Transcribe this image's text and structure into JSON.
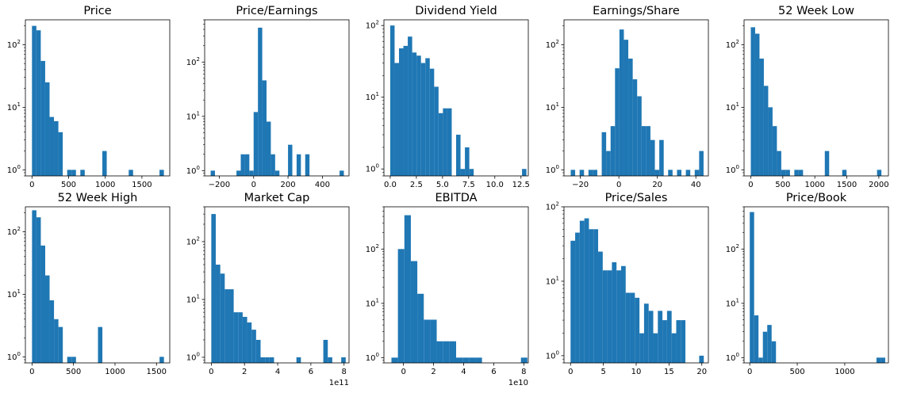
{
  "figure": {
    "bar_color": "#1f77b4",
    "background": "#ffffff"
  },
  "chart_data": [
    {
      "type": "bar",
      "title": "Price",
      "yscale": "log",
      "ylim": [
        0.8,
        250
      ],
      "xlim": [
        -90,
        1880
      ],
      "xticks": [
        0,
        500,
        1000,
        1500
      ],
      "xtick_labels": [
        "0",
        "500",
        "1000",
        "1500"
      ],
      "bins": [
        [
          0,
          60,
          200
        ],
        [
          60,
          120,
          170
        ],
        [
          120,
          180,
          55
        ],
        [
          180,
          240,
          25
        ],
        [
          240,
          300,
          7
        ],
        [
          300,
          360,
          6
        ],
        [
          360,
          420,
          4
        ],
        [
          480,
          540,
          1
        ],
        [
          540,
          600,
          1
        ],
        [
          660,
          720,
          1
        ],
        [
          960,
          1020,
          2
        ],
        [
          1320,
          1380,
          1
        ],
        [
          1740,
          1800,
          1
        ]
      ]
    },
    {
      "type": "bar",
      "title": "Price/Earnings",
      "yscale": "log",
      "ylim": [
        0.8,
        600
      ],
      "xlim": [
        -285,
        555
      ],
      "xticks": [
        -200,
        0,
        200,
        400
      ],
      "xtick_labels": [
        "−200",
        "0",
        "200",
        "400"
      ],
      "bins": [
        [
          -250,
          -225,
          1
        ],
        [
          -100,
          -75,
          1
        ],
        [
          -75,
          -50,
          2
        ],
        [
          -50,
          -25,
          2
        ],
        [
          -25,
          0,
          1
        ],
        [
          0,
          25,
          12
        ],
        [
          25,
          50,
          430
        ],
        [
          50,
          75,
          46
        ],
        [
          75,
          100,
          8
        ],
        [
          100,
          125,
          2
        ],
        [
          125,
          150,
          1
        ],
        [
          200,
          225,
          3
        ],
        [
          250,
          275,
          2
        ],
        [
          300,
          325,
          2
        ],
        [
          500,
          525,
          1
        ]
      ]
    },
    {
      "type": "bar",
      "title": "Dividend Yield",
      "yscale": "log",
      "ylim": [
        0.8,
        120
      ],
      "xlim": [
        -0.6,
        13.2
      ],
      "xticks": [
        0,
        2.5,
        5,
        7.5,
        10,
        12.5
      ],
      "xtick_labels": [
        "0.0",
        "2.5",
        "5.0",
        "7.5",
        "10.0",
        "12.5"
      ],
      "bins": [
        [
          0,
          0.42,
          100
        ],
        [
          0.42,
          0.84,
          30
        ],
        [
          0.84,
          1.26,
          48
        ],
        [
          1.26,
          1.68,
          52
        ],
        [
          1.68,
          2.1,
          70
        ],
        [
          2.1,
          2.52,
          42
        ],
        [
          2.52,
          2.94,
          38
        ],
        [
          2.94,
          3.36,
          30
        ],
        [
          3.36,
          3.78,
          35
        ],
        [
          3.78,
          4.2,
          25
        ],
        [
          4.2,
          4.62,
          14
        ],
        [
          4.62,
          5.04,
          6
        ],
        [
          5.04,
          5.46,
          7
        ],
        [
          5.46,
          5.88,
          7
        ],
        [
          6.3,
          6.72,
          3
        ],
        [
          6.72,
          7.14,
          1
        ],
        [
          7.14,
          7.56,
          2
        ],
        [
          7.56,
          7.98,
          1
        ],
        [
          12.6,
          13.02,
          1
        ]
      ]
    },
    {
      "type": "bar",
      "title": "Earnings/Share",
      "yscale": "log",
      "ylim": [
        0.8,
        250
      ],
      "xlim": [
        -28.5,
        46.5
      ],
      "xticks": [
        -20,
        0,
        20,
        40
      ],
      "xtick_labels": [
        "−20",
        "0",
        "20",
        "40"
      ],
      "bins": [
        [
          -25,
          -22.7,
          1
        ],
        [
          -20.4,
          -18.1,
          1
        ],
        [
          -15.8,
          -13.5,
          1
        ],
        [
          -13.5,
          -11.2,
          1
        ],
        [
          -8.9,
          -6.6,
          4
        ],
        [
          -6.6,
          -4.3,
          2
        ],
        [
          -4.3,
          -2,
          5
        ],
        [
          -2,
          0.3,
          42
        ],
        [
          0.3,
          2.6,
          175
        ],
        [
          2.6,
          4.9,
          120
        ],
        [
          4.9,
          7.2,
          60
        ],
        [
          7.2,
          9.5,
          28
        ],
        [
          9.5,
          11.8,
          15
        ],
        [
          11.8,
          14.1,
          5
        ],
        [
          14.1,
          16.4,
          5
        ],
        [
          16.4,
          18.7,
          3
        ],
        [
          18.7,
          21,
          1
        ],
        [
          21,
          23.3,
          3
        ],
        [
          25.6,
          27.9,
          1
        ],
        [
          30.2,
          32.5,
          1
        ],
        [
          34.8,
          37.1,
          1
        ],
        [
          39.4,
          41.7,
          1
        ],
        [
          41.7,
          44,
          2
        ]
      ]
    },
    {
      "type": "bar",
      "title": "52 Week Low",
      "yscale": "log",
      "ylim": [
        0.8,
        250
      ],
      "xlim": [
        -105,
        2150
      ],
      "xticks": [
        0,
        500,
        1000,
        1500,
        2000
      ],
      "xtick_labels": [
        "0",
        "500",
        "1000",
        "1500",
        "2000"
      ],
      "bins": [
        [
          0,
          68,
          190
        ],
        [
          68,
          136,
          150
        ],
        [
          136,
          204,
          60
        ],
        [
          204,
          272,
          22
        ],
        [
          272,
          340,
          10
        ],
        [
          340,
          408,
          5
        ],
        [
          408,
          476,
          2
        ],
        [
          476,
          544,
          1
        ],
        [
          544,
          612,
          1
        ],
        [
          680,
          748,
          1
        ],
        [
          748,
          816,
          1
        ],
        [
          1156,
          1224,
          2
        ],
        [
          1428,
          1496,
          1
        ],
        [
          1972,
          2040,
          1
        ]
      ]
    },
    {
      "type": "bar",
      "title": "52 Week High",
      "yscale": "log",
      "ylim": [
        0.8,
        250
      ],
      "xlim": [
        -80,
        1660
      ],
      "xticks": [
        0,
        500,
        1000,
        1500
      ],
      "xtick_labels": [
        "0",
        "500",
        "1000",
        "1500"
      ],
      "bins": [
        [
          0,
          53,
          220
        ],
        [
          53,
          106,
          170
        ],
        [
          106,
          159,
          60
        ],
        [
          159,
          212,
          20
        ],
        [
          212,
          265,
          8
        ],
        [
          265,
          318,
          4
        ],
        [
          318,
          371,
          3
        ],
        [
          424,
          477,
          1
        ],
        [
          477,
          530,
          1
        ],
        [
          795,
          848,
          3
        ],
        [
          1537,
          1590,
          1
        ]
      ]
    },
    {
      "type": "bar",
      "title": "Market Cap",
      "yscale": "log",
      "ylim": [
        0.8,
        400
      ],
      "xlim": [
        -0.4,
        8.3
      ],
      "xticks": [
        0,
        2,
        4,
        6,
        8
      ],
      "xtick_labels": [
        "0",
        "2",
        "4",
        "6",
        "8"
      ],
      "x_offset_label": "1e11",
      "bins": [
        [
          0,
          0.27,
          300
        ],
        [
          0.27,
          0.54,
          40
        ],
        [
          0.54,
          0.81,
          28
        ],
        [
          0.81,
          1.08,
          15
        ],
        [
          1.08,
          1.35,
          15
        ],
        [
          1.35,
          1.62,
          6
        ],
        [
          1.62,
          1.89,
          6
        ],
        [
          1.89,
          2.16,
          5
        ],
        [
          2.16,
          2.43,
          4
        ],
        [
          2.43,
          2.7,
          3
        ],
        [
          2.7,
          2.97,
          2
        ],
        [
          2.97,
          3.24,
          1
        ],
        [
          3.24,
          3.51,
          1
        ],
        [
          3.51,
          3.78,
          1
        ],
        [
          5.13,
          5.4,
          1
        ],
        [
          6.75,
          7.02,
          2
        ],
        [
          7.02,
          7.29,
          1
        ],
        [
          7.83,
          8.1,
          1
        ]
      ]
    },
    {
      "type": "bar",
      "title": "EBITDA",
      "yscale": "log",
      "ylim": [
        0.8,
        600
      ],
      "xlim": [
        -1.3,
        8.3
      ],
      "xticks": [
        0,
        2,
        4,
        6,
        8
      ],
      "xtick_labels": [
        "0",
        "2",
        "4",
        "6",
        "8"
      ],
      "x_offset_label": "1e10",
      "bins": [
        [
          -0.8,
          -0.37,
          1
        ],
        [
          -0.37,
          0.06,
          100
        ],
        [
          0.06,
          0.49,
          420
        ],
        [
          0.49,
          0.92,
          60
        ],
        [
          0.92,
          1.35,
          15
        ],
        [
          1.35,
          1.78,
          5
        ],
        [
          1.78,
          2.21,
          5
        ],
        [
          2.21,
          2.64,
          2
        ],
        [
          2.64,
          3.07,
          2
        ],
        [
          3.07,
          3.5,
          2
        ],
        [
          3.5,
          3.93,
          1
        ],
        [
          3.93,
          4.36,
          1
        ],
        [
          4.36,
          4.79,
          1
        ],
        [
          4.79,
          5.22,
          1
        ],
        [
          7.81,
          8.24,
          1
        ]
      ]
    },
    {
      "type": "bar",
      "title": "Price/Sales",
      "yscale": "log",
      "ylim": [
        0.8,
        100
      ],
      "xlim": [
        -1,
        21
      ],
      "xticks": [
        0,
        5,
        10,
        15,
        20
      ],
      "xtick_labels": [
        "0",
        "5",
        "10",
        "15",
        "20"
      ],
      "bins": [
        [
          0,
          0.7,
          35
        ],
        [
          0.7,
          1.4,
          45
        ],
        [
          1.4,
          2.1,
          65
        ],
        [
          2.1,
          2.8,
          70
        ],
        [
          2.8,
          3.5,
          50
        ],
        [
          3.5,
          4.2,
          50
        ],
        [
          4.2,
          4.9,
          25
        ],
        [
          4.9,
          5.6,
          14
        ],
        [
          5.6,
          6.3,
          14
        ],
        [
          6.3,
          7,
          18
        ],
        [
          7,
          7.7,
          14
        ],
        [
          7.7,
          8.4,
          16
        ],
        [
          8.4,
          9.1,
          7
        ],
        [
          9.1,
          9.8,
          7
        ],
        [
          9.8,
          10.5,
          6
        ],
        [
          10.5,
          11.2,
          2
        ],
        [
          11.2,
          11.9,
          5
        ],
        [
          11.9,
          12.6,
          4
        ],
        [
          12.6,
          13.3,
          2
        ],
        [
          13.3,
          14,
          4
        ],
        [
          14,
          14.7,
          3
        ],
        [
          14.7,
          15.4,
          4
        ],
        [
          15.4,
          16.1,
          2
        ],
        [
          16.1,
          16.8,
          3
        ],
        [
          16.8,
          17.5,
          3
        ],
        [
          19.6,
          20.3,
          1
        ]
      ]
    },
    {
      "type": "bar",
      "title": "Price/Book",
      "yscale": "log",
      "ylim": [
        0.8,
        600
      ],
      "xlim": [
        -60,
        1460
      ],
      "xticks": [
        0,
        500,
        1000
      ],
      "xtick_labels": [
        "0",
        "500",
        "1000"
      ],
      "bins": [
        [
          0,
          46,
          480
        ],
        [
          46,
          92,
          6
        ],
        [
          92,
          138,
          1
        ],
        [
          138,
          184,
          3
        ],
        [
          184,
          230,
          4
        ],
        [
          230,
          276,
          2
        ],
        [
          1334,
          1380,
          1
        ],
        [
          1380,
          1426,
          1
        ]
      ]
    }
  ]
}
